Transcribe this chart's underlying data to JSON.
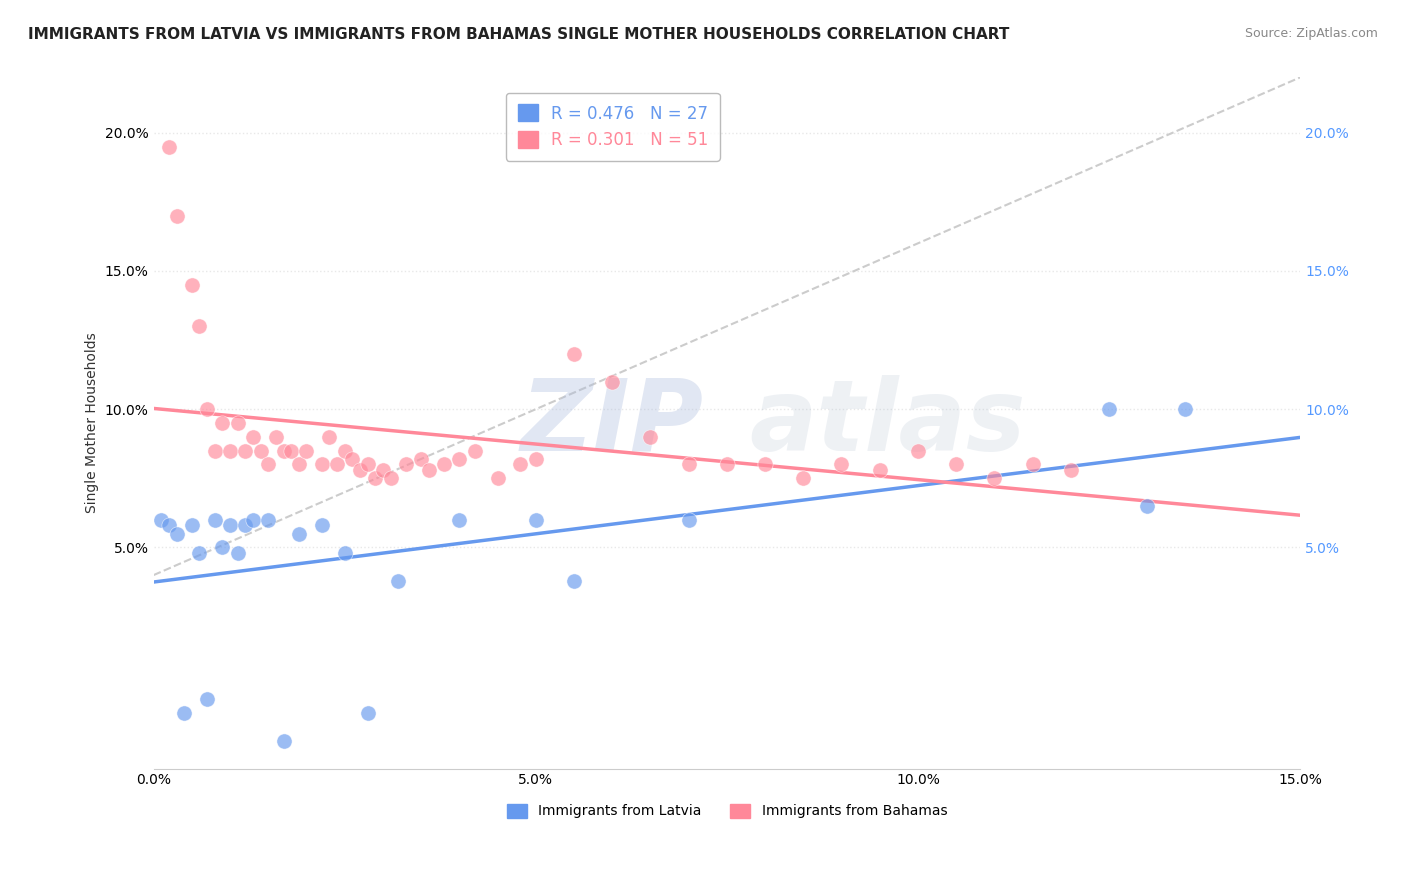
{
  "title": "IMMIGRANTS FROM LATVIA VS IMMIGRANTS FROM BAHAMAS SINGLE MOTHER HOUSEHOLDS CORRELATION CHART",
  "source": "Source: ZipAtlas.com",
  "ylabel": "Single Mother Households",
  "watermark_zip": "ZIP",
  "watermark_atlas": "atlas",
  "xlim": [
    0.0,
    0.15
  ],
  "ylim": [
    -0.03,
    0.22
  ],
  "yticks": [
    0.05,
    0.1,
    0.15,
    0.2
  ],
  "ytick_labels": [
    "5.0%",
    "10.0%",
    "15.0%",
    "20.0%"
  ],
  "xticks": [
    0.0,
    0.05,
    0.1,
    0.15
  ],
  "xtick_labels": [
    "0.0%",
    "5.0%",
    "10.0%",
    "15.0%"
  ],
  "latvia_color": "#6699ee",
  "bahamas_color": "#ff8899",
  "legend_latvia_r": "R = 0.476",
  "legend_latvia_n": "N = 27",
  "legend_bahamas_r": "R = 0.301",
  "legend_bahamas_n": "N = 51",
  "latvia_scatter_x": [
    0.001,
    0.002,
    0.003,
    0.004,
    0.005,
    0.006,
    0.007,
    0.008,
    0.009,
    0.01,
    0.011,
    0.012,
    0.013,
    0.015,
    0.017,
    0.019,
    0.022,
    0.025,
    0.028,
    0.032,
    0.04,
    0.05,
    0.055,
    0.07,
    0.125,
    0.13,
    0.135
  ],
  "latvia_scatter_y": [
    0.06,
    0.058,
    0.055,
    -0.01,
    0.058,
    0.048,
    -0.005,
    0.06,
    0.05,
    0.058,
    0.048,
    0.058,
    0.06,
    0.06,
    -0.02,
    0.055,
    0.058,
    0.048,
    -0.01,
    0.038,
    0.06,
    0.06,
    0.038,
    0.06,
    0.1,
    0.065,
    0.1
  ],
  "bahamas_scatter_x": [
    0.002,
    0.003,
    0.005,
    0.006,
    0.007,
    0.008,
    0.009,
    0.01,
    0.011,
    0.012,
    0.013,
    0.014,
    0.015,
    0.016,
    0.017,
    0.018,
    0.019,
    0.02,
    0.022,
    0.023,
    0.024,
    0.025,
    0.026,
    0.027,
    0.028,
    0.029,
    0.03,
    0.031,
    0.033,
    0.035,
    0.036,
    0.038,
    0.04,
    0.042,
    0.045,
    0.048,
    0.05,
    0.055,
    0.06,
    0.065,
    0.07,
    0.075,
    0.08,
    0.085,
    0.09,
    0.095,
    0.1,
    0.105,
    0.11,
    0.115,
    0.12
  ],
  "bahamas_scatter_y": [
    0.195,
    0.17,
    0.145,
    0.13,
    0.1,
    0.085,
    0.095,
    0.085,
    0.095,
    0.085,
    0.09,
    0.085,
    0.08,
    0.09,
    0.085,
    0.085,
    0.08,
    0.085,
    0.08,
    0.09,
    0.08,
    0.085,
    0.082,
    0.078,
    0.08,
    0.075,
    0.078,
    0.075,
    0.08,
    0.082,
    0.078,
    0.08,
    0.082,
    0.085,
    0.075,
    0.08,
    0.082,
    0.12,
    0.11,
    0.09,
    0.08,
    0.08,
    0.08,
    0.075,
    0.08,
    0.078,
    0.085,
    0.08,
    0.075,
    0.08,
    0.078
  ],
  "title_fontsize": 11,
  "label_fontsize": 10,
  "tick_fontsize": 10,
  "background_color": "#ffffff",
  "grid_color": "#e8e8e8"
}
